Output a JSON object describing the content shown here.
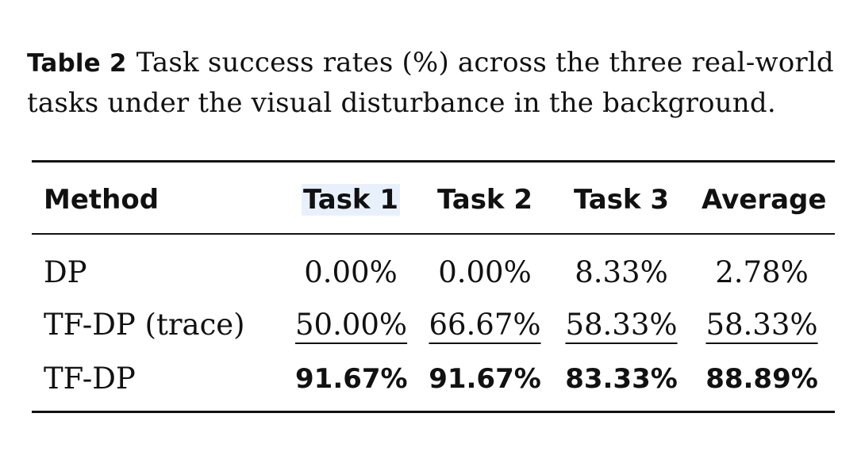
{
  "caption": {
    "label": "Table 2",
    "text": "Task success rates (%) across the three real-world tasks under the visual disturbance in the background."
  },
  "table": {
    "headers": [
      "Method",
      "Task 1",
      "Task 2",
      "Task 3",
      "Average"
    ],
    "rows": [
      {
        "method": "DP",
        "values": [
          "0.00%",
          "0.00%",
          "8.33%",
          "2.78%"
        ],
        "style": "normal"
      },
      {
        "method": "TF-DP (trace)",
        "values": [
          "50.00%",
          "66.67%",
          "58.33%",
          "58.33%"
        ],
        "style": "underline"
      },
      {
        "method": "TF-DP",
        "values": [
          "91.67%",
          "91.67%",
          "83.33%",
          "88.89%"
        ],
        "style": "bold"
      }
    ]
  }
}
